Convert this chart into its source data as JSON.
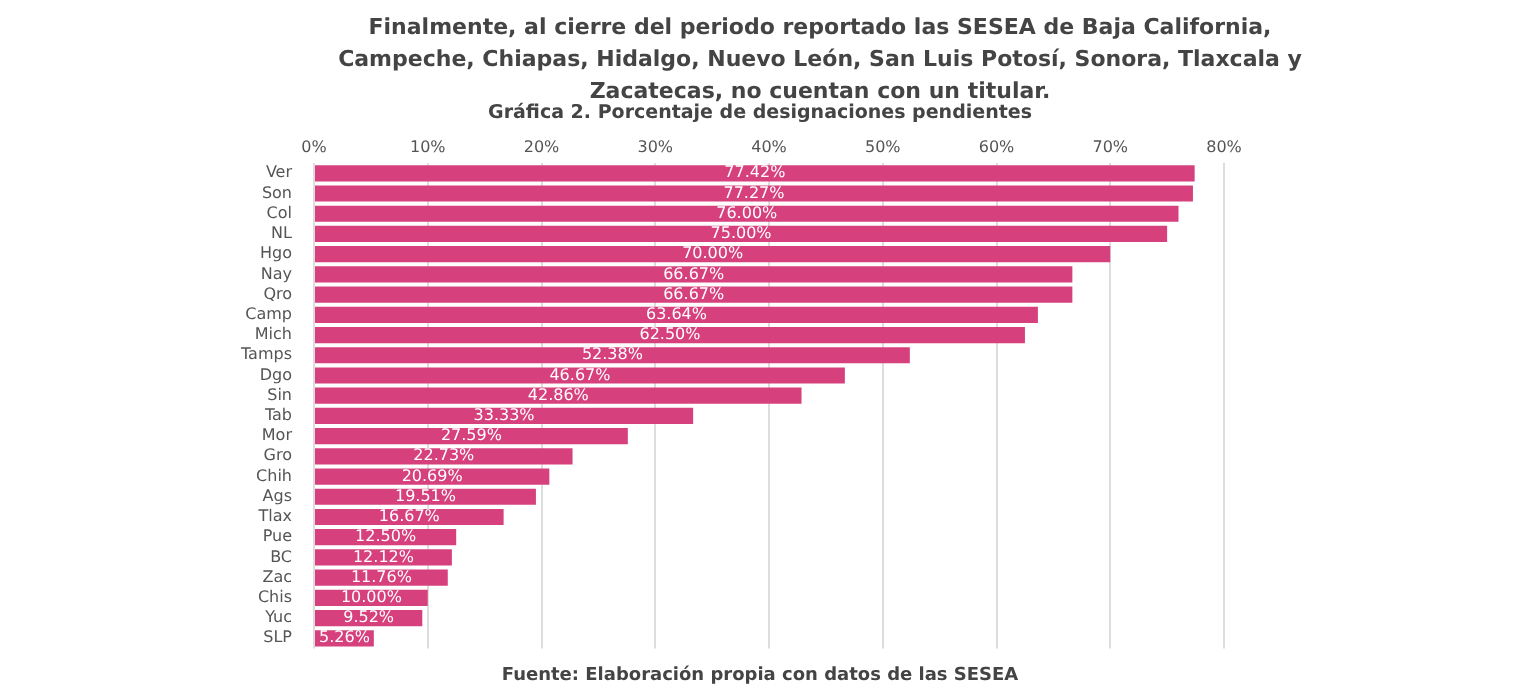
{
  "chart_data": {
    "type": "bar",
    "orientation": "horizontal",
    "title": "Gráfica 2. Porcentaje de designaciones pendientes",
    "annotations": [
      "Finalmente, al cierre del periodo reportado las SESEA de Baja California, Campeche, Chiapas, Hidalgo, Nuevo León, San Luis Potosí, Sonora, Tlaxcala y Zacatecas, no cuentan con un titular.",
      "Fuente: Elaboración propia con datos de las SESEA"
    ],
    "categories": [
      "Ver",
      "Son",
      "Col",
      "NL",
      "Hgo",
      "Nay",
      "Qro",
      "Camp",
      "Mich",
      "Tamps",
      "Dgo",
      "Sin",
      "Tab",
      "Mor",
      "Gro",
      "Chih",
      "Ags",
      "Tlax",
      "Pue",
      "BC",
      "Zac",
      "Chis",
      "Yuc",
      "SLP"
    ],
    "values": [
      77.42,
      77.27,
      76.0,
      75.0,
      70.0,
      66.67,
      66.67,
      63.64,
      62.5,
      52.38,
      46.67,
      42.86,
      33.33,
      27.59,
      22.73,
      20.69,
      19.51,
      16.67,
      12.5,
      12.12,
      11.76,
      10.0,
      9.52,
      5.26
    ],
    "value_labels": [
      "77.42%",
      "77.27%",
      "76.00%",
      "75.00%",
      "70.00%",
      "66.67%",
      "66.67%",
      "63.64%",
      "62.50%",
      "52.38%",
      "46.67%",
      "42.86%",
      "33.33%",
      "27.59%",
      "22.73%",
      "20.69%",
      "19.51%",
      "16.67%",
      "12.50%",
      "12.12%",
      "11.76%",
      "10.00%",
      "9.52%",
      "5.26%"
    ],
    "color": "#d6407c",
    "xlim": [
      0,
      80
    ],
    "xticks": [
      {
        "value": 0,
        "label": "0%"
      },
      {
        "value": 10,
        "label": "10%"
      },
      {
        "value": 20,
        "label": "20%"
      },
      {
        "value": 30,
        "label": "30%"
      },
      {
        "value": 40,
        "label": "40%"
      },
      {
        "value": 50,
        "label": "50%"
      },
      {
        "value": 60,
        "label": "60%"
      },
      {
        "value": 70,
        "label": "70%"
      },
      {
        "value": 80,
        "label": "80%"
      }
    ],
    "grid": "x",
    "legend": false
  }
}
